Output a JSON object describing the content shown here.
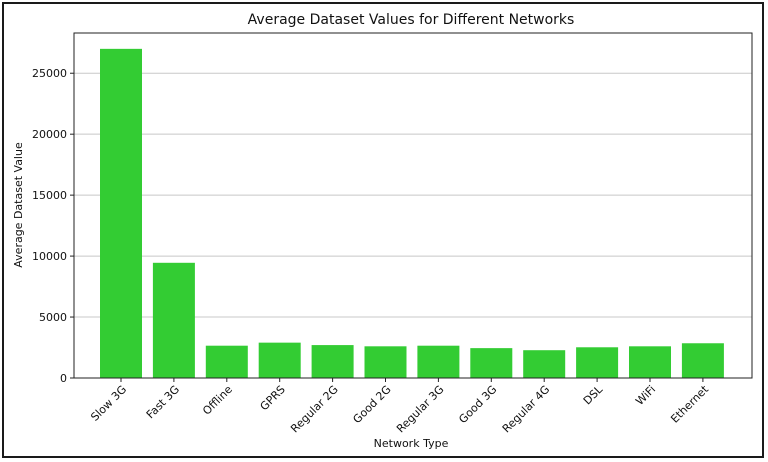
{
  "chart_data": {
    "type": "bar",
    "title": "Average Dataset Values for Different Networks",
    "xlabel": "Network Type",
    "ylabel": "Average Dataset Value",
    "categories": [
      "Slow 3G",
      "Fast 3G",
      "Offline",
      "GPRS",
      "Regular 2G",
      "Good 2G",
      "Regular 3G",
      "Good 3G",
      "Regular 4G",
      "DSL",
      "WiFi",
      "Ethernet"
    ],
    "values": [
      27000,
      9450,
      2650,
      2900,
      2700,
      2600,
      2650,
      2450,
      2280,
      2520,
      2600,
      2850
    ],
    "ylim": [
      0,
      28300
    ],
    "yticks": [
      0,
      5000,
      10000,
      15000,
      20000,
      25000
    ],
    "grid": "horizontal",
    "bar_color": "#33cc33"
  }
}
